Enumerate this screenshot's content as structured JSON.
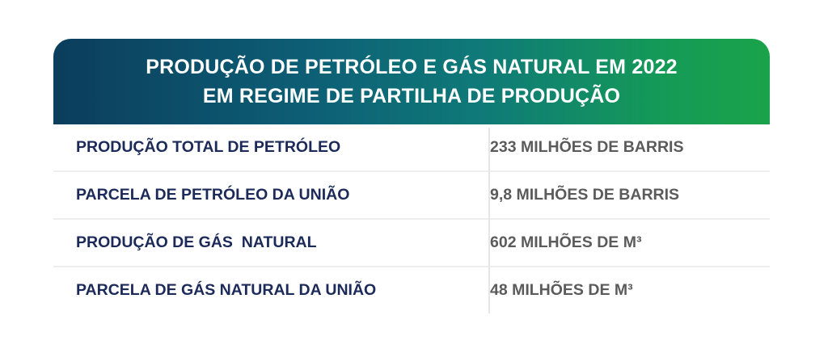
{
  "header": {
    "line1": "PRODUÇÃO DE PETRÓLEO E GÁS NATURAL EM 2022",
    "line2": "EM REGIME DE PARTILHA DE PRODUÇÃO"
  },
  "rows": [
    {
      "label": "PRODUÇÃO TOTAL DE PETRÓLEO",
      "value": "233 MILHÕES DE BARRIS"
    },
    {
      "label": "PARCELA DE PETRÓLEO DA UNIÃO",
      "value": "9,8 MILHÕES DE BARRIS"
    },
    {
      "label": "PRODUÇÃO DE GÁS  NATURAL",
      "value": "602 MILHÕES DE M³"
    },
    {
      "label": "PARCELA DE GÁS NATURAL DA UNIÃO",
      "value": "48 MILHÕES DE M³"
    }
  ],
  "colors": {
    "header_gradient_start": "#0b3d5c",
    "header_gradient_end": "#1aa34a",
    "label_text": "#1c2a5a",
    "value_text": "#5b5b5b"
  }
}
